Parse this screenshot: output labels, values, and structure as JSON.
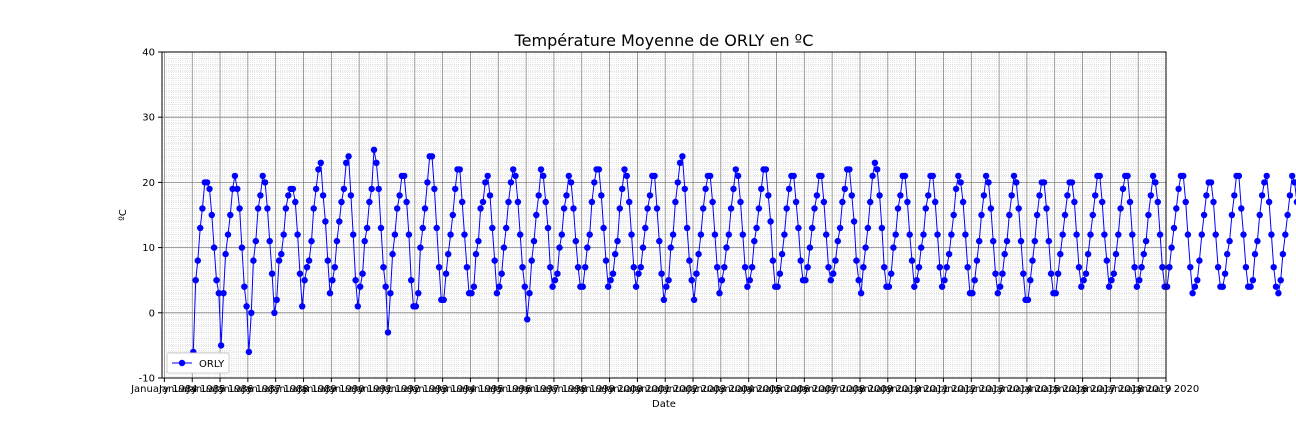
{
  "chart_data": {
    "type": "line",
    "title": "Température Moyenne de ORLY en ºC",
    "xlabel": "Date",
    "ylabel": "ºC",
    "ylim": [
      -10,
      40
    ],
    "xlim": [
      "1983-12-01",
      "2020-01-01"
    ],
    "grid": true,
    "minor_grid": true,
    "legend_position": "lower-left",
    "y_ticks": [
      -10,
      0,
      10,
      20,
      30,
      40
    ],
    "x_tick_labels": [
      "January 1984",
      "January 1985",
      "January 1986",
      "January 1987",
      "January 1988",
      "January 1989",
      "January 1990",
      "January 1991",
      "January 1992",
      "January 1993",
      "January 1994",
      "January 1995",
      "January 1996",
      "January 1997",
      "January 1998",
      "January 1999",
      "January 2000",
      "January 2001",
      "January 2002",
      "January 2003",
      "January 2004",
      "January 2005",
      "January 2006",
      "January 2007",
      "January 2008",
      "January 2009",
      "January 2010",
      "January 2011",
      "January 2012",
      "January 2013",
      "January 2014",
      "January 2015",
      "January 2016",
      "January 2017",
      "January 2018",
      "January 2019",
      "January 2020"
    ],
    "series": [
      {
        "name": "ORLY",
        "color": "#0000ff",
        "marker": "circle",
        "start_date": "1985-01",
        "step": "month",
        "values": [
          -6,
          5,
          8,
          13,
          16,
          20,
          20,
          19,
          15,
          10,
          5,
          3,
          -5,
          3,
          9,
          12,
          15,
          19,
          21,
          19,
          16,
          10,
          4,
          1,
          -6,
          0,
          8,
          11,
          16,
          18,
          21,
          20,
          16,
          11,
          6,
          0,
          2,
          8,
          9,
          12,
          16,
          18,
          19,
          19,
          17,
          12,
          6,
          1,
          5,
          7,
          8,
          11,
          16,
          19,
          22,
          23,
          18,
          14,
          8,
          3,
          5,
          7,
          11,
          14,
          17,
          19,
          23,
          24,
          18,
          12,
          5,
          1,
          4,
          6,
          11,
          13,
          17,
          19,
          25,
          23,
          19,
          13,
          7,
          4,
          -3,
          3,
          9,
          12,
          16,
          18,
          21,
          21,
          17,
          12,
          5,
          1,
          1,
          3,
          10,
          13,
          16,
          20,
          24,
          24,
          19,
          13,
          7,
          2,
          2,
          6,
          9,
          12,
          15,
          19,
          22,
          22,
          17,
          12,
          7,
          3,
          3,
          4,
          9,
          11,
          16,
          17,
          20,
          21,
          18,
          13,
          8,
          3,
          4,
          6,
          10,
          13,
          17,
          20,
          22,
          21,
          17,
          12,
          7,
          4,
          -1,
          3,
          8,
          11,
          15,
          18,
          22,
          21,
          17,
          13,
          7,
          4,
          5,
          6,
          10,
          12,
          16,
          18,
          21,
          20,
          16,
          11,
          7,
          4,
          4,
          7,
          10,
          12,
          17,
          20,
          22,
          22,
          18,
          13,
          8,
          4,
          5,
          6,
          9,
          11,
          16,
          19,
          22,
          21,
          17,
          12,
          7,
          4,
          6,
          7,
          10,
          13,
          16,
          18,
          21,
          21,
          16,
          11,
          6,
          2,
          4,
          5,
          10,
          12,
          17,
          20,
          23,
          24,
          19,
          13,
          8,
          5,
          2,
          6,
          9,
          12,
          16,
          19,
          21,
          21,
          17,
          12,
          7,
          3,
          5,
          7,
          10,
          12,
          16,
          19,
          22,
          21,
          17,
          12,
          7,
          4,
          5,
          7,
          11,
          13,
          16,
          19,
          22,
          22,
          18,
          14,
          8,
          4,
          4,
          6,
          9,
          12,
          16,
          19,
          21,
          21,
          17,
          13,
          8,
          5,
          5,
          7,
          10,
          13,
          16,
          18,
          21,
          21,
          17,
          12,
          7,
          5,
          6,
          8,
          11,
          13,
          17,
          19,
          22,
          22,
          18,
          14,
          8,
          5,
          3,
          7,
          10,
          13,
          17,
          21,
          23,
          22,
          18,
          13,
          7,
          4,
          4,
          6,
          10,
          12,
          16,
          18,
          21,
          21,
          17,
          12,
          8,
          4,
          5,
          7,
          10,
          12,
          16,
          18,
          21,
          21,
          17,
          12,
          7,
          4,
          5,
          7,
          9,
          12,
          15,
          19,
          21,
          20,
          17,
          12,
          7,
          3,
          3,
          5,
          8,
          11,
          15,
          18,
          21,
          20,
          16,
          11,
          6,
          3,
          4,
          6,
          9,
          11,
          15,
          18,
          21,
          20,
          16,
          11,
          6,
          2,
          2,
          5,
          8,
          11,
          15,
          18,
          20,
          20,
          16,
          11,
          6,
          3,
          3,
          6,
          9,
          12,
          15,
          18,
          20,
          20,
          17,
          12,
          7,
          4,
          5,
          6,
          9,
          12,
          15,
          18,
          21,
          21,
          17,
          12,
          8,
          4,
          5,
          6,
          9,
          12,
          16,
          19,
          21,
          21,
          17,
          12,
          7,
          4,
          5,
          7,
          9,
          11,
          15,
          18,
          21,
          20,
          17,
          12,
          7,
          4,
          4,
          7,
          10,
          13,
          16,
          19,
          21,
          21,
          17,
          12,
          7,
          3,
          4,
          5,
          8,
          12,
          15,
          18,
          20,
          20,
          17,
          12,
          7,
          4,
          4,
          6,
          9,
          11,
          15,
          18,
          21,
          21,
          16,
          12,
          7,
          4,
          4,
          5,
          9,
          11,
          15,
          18,
          20,
          21,
          17,
          12,
          7,
          4,
          3,
          5,
          9,
          12,
          15,
          18,
          21,
          20,
          17,
          12,
          7,
          4,
          4,
          6,
          9,
          11,
          15,
          18,
          21,
          20,
          17,
          13,
          8,
          5,
          5,
          6,
          9,
          12,
          16,
          18,
          21,
          20,
          17,
          12,
          7,
          4,
          3,
          5,
          9,
          12,
          15,
          19,
          21,
          21,
          17,
          12,
          8,
          4,
          4,
          6,
          10,
          12,
          16,
          19,
          21,
          21,
          17,
          12,
          7,
          5
        ]
      }
    ]
  }
}
